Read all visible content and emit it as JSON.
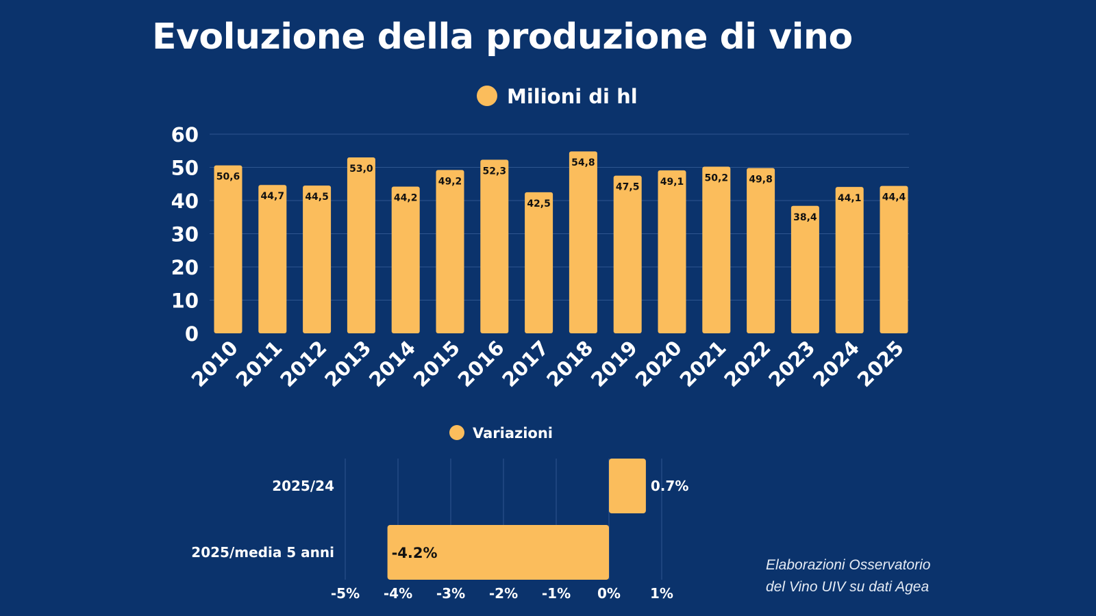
{
  "title": "Evoluzione della produzione di vino",
  "source": [
    "Elaborazioni Osservatorio",
    "del Vino UIV su dati Agea"
  ],
  "colors": {
    "background": "#0b336c",
    "bar": "#fbbd5c",
    "grid": "#2f5690",
    "text": "#ffffff"
  },
  "chart_data": [
    {
      "type": "bar",
      "title": "",
      "legend": "Milioni di hl",
      "legend_position": "top",
      "categories": [
        "2010",
        "2011",
        "2012",
        "2013",
        "2014",
        "2015",
        "2016",
        "2017",
        "2018",
        "2019",
        "2020",
        "2021",
        "2022",
        "2023",
        "2024",
        "2025"
      ],
      "values": [
        50.6,
        44.7,
        44.5,
        53.0,
        44.2,
        49.2,
        52.3,
        42.5,
        54.8,
        47.5,
        49.1,
        50.2,
        49.8,
        38.4,
        44.1,
        44.4
      ],
      "labels": [
        "50,6",
        "44,7",
        "44,5",
        "53,0",
        "44,2",
        "49,2",
        "52,3",
        "42,5",
        "54,8",
        "47,5",
        "49,1",
        "50,2",
        "49,8",
        "38,4",
        "44,1",
        "44,4"
      ],
      "yticks": [
        "0",
        "10",
        "20",
        "30",
        "40",
        "50",
        "60"
      ],
      "ylim": [
        0,
        60
      ],
      "grid": true,
      "xlabel": "",
      "ylabel": ""
    },
    {
      "type": "bar",
      "orientation": "horizontal",
      "legend": "Variazioni",
      "legend_position": "top",
      "categories": [
        "2025/24",
        "2025/media 5 anni"
      ],
      "values": [
        0.7,
        -4.2
      ],
      "labels": [
        "0.7%",
        "-4.2%"
      ],
      "xticks": [
        "-5%",
        "-4%",
        "-3%",
        "-2%",
        "-1%",
        "0%",
        "1%"
      ],
      "xlim": [
        -5,
        1
      ],
      "grid": true
    }
  ]
}
